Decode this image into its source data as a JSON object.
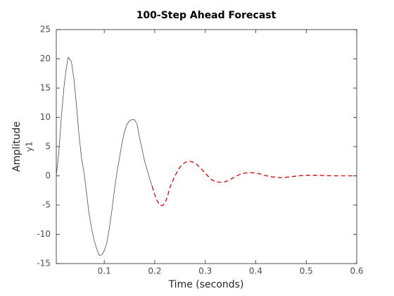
{
  "chart_data": {
    "type": "line",
    "title": "100-Step Ahead Forecast",
    "xlabel": "Time (seconds)",
    "ylabel": "Amplitude",
    "ylabel2": "y1",
    "xlim": [
      0.005,
      0.6
    ],
    "ylim": [
      -15,
      25
    ],
    "xticks": [
      0.1,
      0.2,
      0.3,
      0.4,
      0.5,
      0.6
    ],
    "yticks": [
      -15,
      -10,
      -5,
      0,
      5,
      10,
      15,
      20,
      25
    ],
    "grid": false,
    "series": [
      {
        "color": "#4d4d4d",
        "dash": false,
        "x": [
          0.005,
          0.01,
          0.015,
          0.02,
          0.025,
          0.0287,
          0.035,
          0.04,
          0.045,
          0.05,
          0.055,
          0.06,
          0.065,
          0.07,
          0.075,
          0.08,
          0.085,
          0.09,
          0.095,
          0.1,
          0.105,
          0.11,
          0.115,
          0.12,
          0.125,
          0.13,
          0.135,
          0.14,
          0.145,
          0.15,
          0.155,
          0.16,
          0.165,
          0.17,
          0.175,
          0.18,
          0.185,
          0.19,
          0.195
        ],
        "values": [
          0,
          4,
          10,
          15,
          18.5,
          20.3,
          19.5,
          16.5,
          12,
          7,
          3,
          0.5,
          -3,
          -6.5,
          -9,
          -11,
          -12.5,
          -13.6,
          -13.5,
          -12.8,
          -11.5,
          -9,
          -6,
          -2.5,
          0.5,
          3,
          5.5,
          7.5,
          8.8,
          9.4,
          9.6,
          9.6,
          8.8,
          6.5,
          4.5,
          2.5,
          1,
          -0.5,
          -1.8
        ]
      },
      {
        "color": "#d40000",
        "dash": true,
        "x": [
          0.195,
          0.2,
          0.205,
          0.21,
          0.215,
          0.22,
          0.225,
          0.23,
          0.24,
          0.25,
          0.26,
          0.27,
          0.28,
          0.29,
          0.3,
          0.31,
          0.32,
          0.33,
          0.34,
          0.35,
          0.36,
          0.37,
          0.38,
          0.39,
          0.4,
          0.41,
          0.42,
          0.43,
          0.44,
          0.45,
          0.46,
          0.47,
          0.48,
          0.49,
          0.5,
          0.52,
          0.54,
          0.56,
          0.58,
          0.6
        ],
        "values": [
          -1.8,
          -3.2,
          -4.3,
          -5,
          -5.1,
          -4.7,
          -3.6,
          -2,
          0,
          1.5,
          2.3,
          2.5,
          2.2,
          1.4,
          0.5,
          -0.5,
          -1,
          -1.1,
          -1,
          -0.6,
          -0.1,
          0.3,
          0.5,
          0.55,
          0.5,
          0.3,
          0.05,
          -0.15,
          -0.25,
          -0.3,
          -0.25,
          -0.15,
          -0.05,
          0.05,
          0.1,
          0.1,
          0.05,
          0,
          0,
          0
        ]
      }
    ]
  }
}
